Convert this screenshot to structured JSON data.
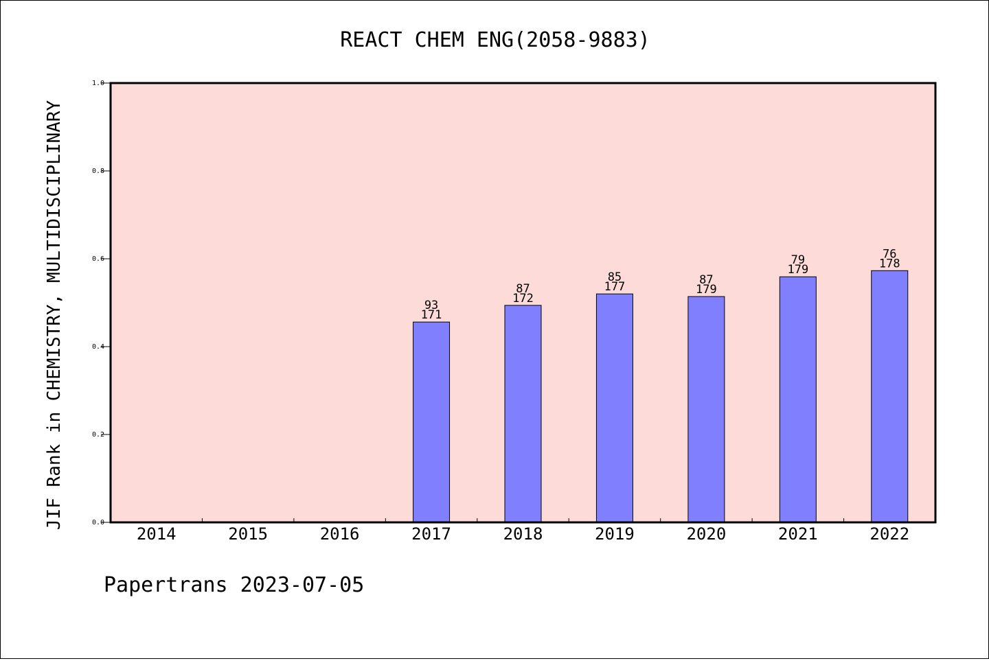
{
  "chart_data": {
    "type": "bar",
    "title": "REACT CHEM ENG(2058-9883)",
    "ylabel": "JIF Rank in CHEMISTRY, MULTIDISCIPLINARY",
    "xlabel": "",
    "ylim": [
      0,
      1.0
    ],
    "yticks": [
      "0.0",
      "0.2",
      "0.4",
      "0.6",
      "0.8",
      "1.0"
    ],
    "categories": [
      "2014",
      "2015",
      "2016",
      "2017",
      "2018",
      "2019",
      "2020",
      "2021",
      "2022"
    ],
    "values": [
      null,
      null,
      null,
      0.456,
      0.494,
      0.52,
      0.514,
      0.559,
      0.573
    ],
    "rank_labels": [
      null,
      null,
      null,
      "93",
      "87",
      "85",
      "87",
      "79",
      "76"
    ],
    "total_labels": [
      null,
      null,
      null,
      "171",
      "172",
      "177",
      "179",
      "179",
      "178"
    ],
    "colors": {
      "plot_background": "#fddbd8",
      "bar_fill": "#8080ff",
      "bar_stroke": "#000000"
    }
  },
  "footer": {
    "text": "Papertrans 2023-07-05"
  }
}
